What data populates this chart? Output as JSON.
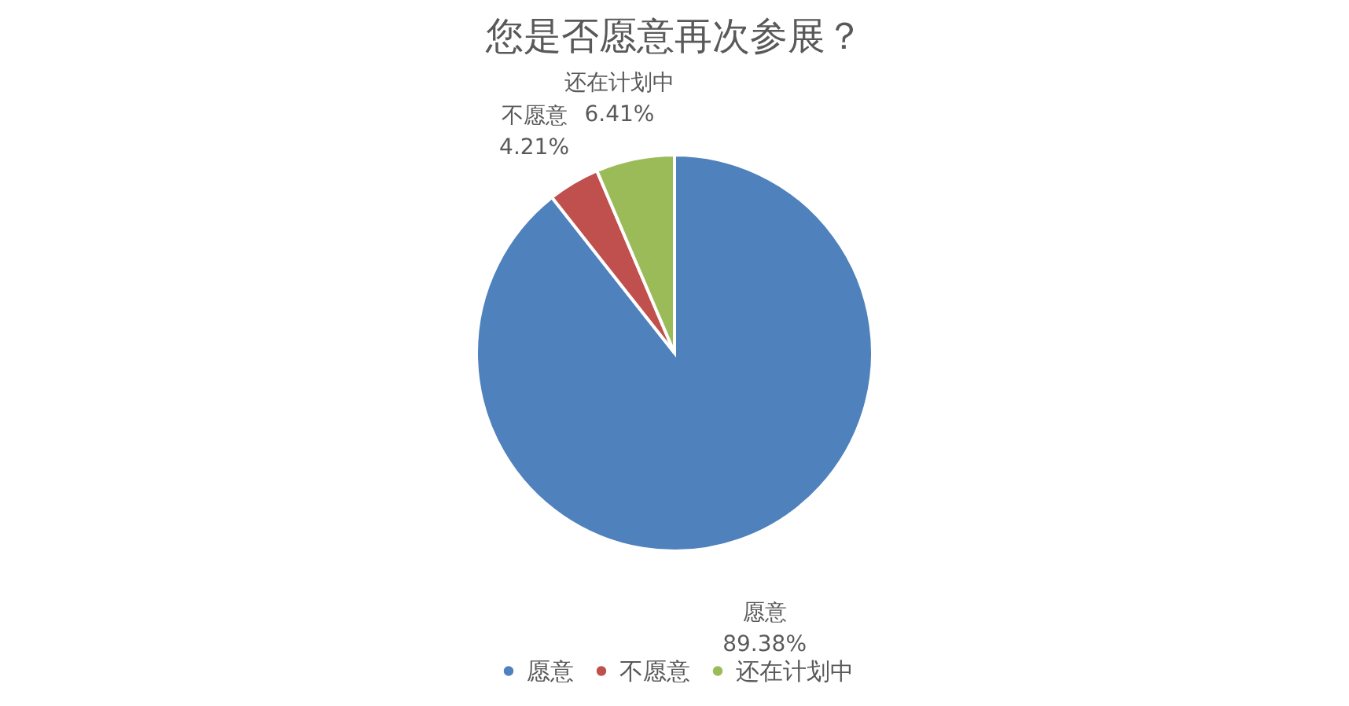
{
  "chart_data": {
    "type": "pie",
    "title": "您是否愿意再次参展？",
    "categories": [
      "愿意",
      "不愿意",
      "还在计划中"
    ],
    "values": [
      89.38,
      4.21,
      6.41
    ],
    "colors": [
      "#4f81bd",
      "#c0504d",
      "#9bbb59"
    ],
    "value_labels": [
      "89.38%",
      "4.21%",
      "6.41%"
    ],
    "legend": "bottom"
  }
}
